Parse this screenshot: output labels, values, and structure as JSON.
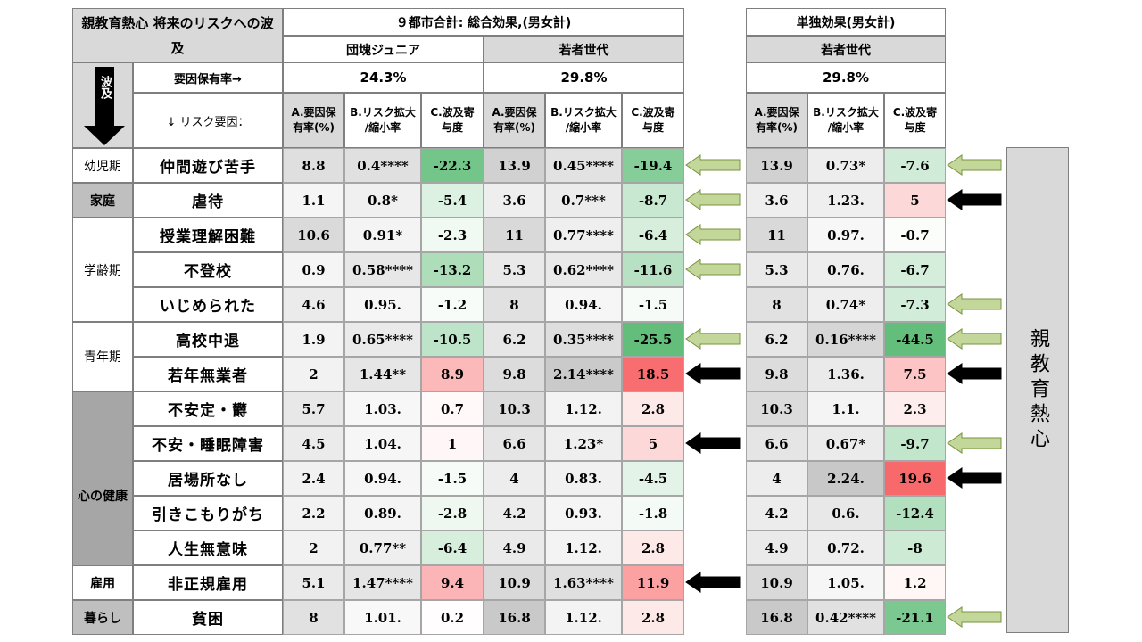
{
  "title": "親教育熱心 将来のリスクへの波及",
  "groups": {
    "total": "９都市合計: 総合効果,(男女計)",
    "single": "単独効果(男女計)"
  },
  "cohorts": {
    "dankai": "団塊ジュニア",
    "young": "若者世代",
    "young_single": "若者世代"
  },
  "rates": {
    "label": "要因保有率→",
    "dankai": "24.3%",
    "young": "29.8%",
    "young_single": "29.8%"
  },
  "risk_factor_label": "↓ リスク要因：",
  "hakyu_label": "波及",
  "col_headers": [
    "A.要因保有率(%)",
    "B.リスク拡大/縮小率",
    "C.波及寄与度"
  ],
  "side_label": "親教育熱心",
  "stages": [
    {
      "label": "幼児期"
    },
    {
      "label": "家庭"
    },
    {
      "label": "学齢期"
    },
    {
      "label": "青年期"
    },
    {
      "label": "心の健康"
    },
    {
      "label": "雇用"
    },
    {
      "label": "暮らし"
    }
  ],
  "rows": [
    {
      "risk": "仲間遊び苦手",
      "v": [
        "8.8",
        "0.4****",
        "-22.3",
        "13.9",
        "0.45****",
        "-19.4",
        "13.9",
        "0.73*",
        "-7.6"
      ]
    },
    {
      "risk": "虐待",
      "v": [
        "1.1",
        "0.8*",
        "-5.4",
        "3.6",
        "0.7***",
        "-8.7",
        "3.6",
        "1.23.",
        "5"
      ]
    },
    {
      "risk": "授業理解困難",
      "v": [
        "10.6",
        "0.91*",
        "-2.3",
        "11",
        "0.77****",
        "-6.4",
        "11",
        "0.97.",
        "-0.7"
      ]
    },
    {
      "risk": "不登校",
      "v": [
        "0.9",
        "0.58****",
        "-13.2",
        "5.3",
        "0.62****",
        "-11.6",
        "5.3",
        "0.76.",
        "-6.7"
      ]
    },
    {
      "risk": "いじめられた",
      "v": [
        "4.6",
        "0.95.",
        "-1.2",
        "8",
        "0.94.",
        "-1.5",
        "8",
        "0.74*",
        "-7.3"
      ]
    },
    {
      "risk": "高校中退",
      "v": [
        "1.9",
        "0.65****",
        "-10.5",
        "6.2",
        "0.35****",
        "-25.5",
        "6.2",
        "0.16****",
        "-44.5"
      ]
    },
    {
      "risk": "若年無業者",
      "v": [
        "2",
        "1.44**",
        "8.9",
        "9.8",
        "2.14****",
        "18.5",
        "9.8",
        "1.36.",
        "7.5"
      ]
    },
    {
      "risk": "不安定・欝",
      "v": [
        "5.7",
        "1.03.",
        "0.7",
        "10.3",
        "1.12.",
        "2.8",
        "10.3",
        "1.1.",
        "2.3"
      ]
    },
    {
      "risk": "不安・睡眠障害",
      "v": [
        "4.5",
        "1.04.",
        "1",
        "6.6",
        "1.23*",
        "5",
        "6.6",
        "0.67*",
        "-9.7"
      ]
    },
    {
      "risk": "居場所なし",
      "v": [
        "2.4",
        "0.94.",
        "-1.5",
        "4",
        "0.83.",
        "-4.5",
        "4",
        "2.24.",
        "19.6"
      ]
    },
    {
      "risk": "引きこもりがち",
      "v": [
        "2.2",
        "0.89.",
        "-2.8",
        "4.2",
        "0.93.",
        "-1.8",
        "4.2",
        "0.6.",
        "-12.4"
      ]
    },
    {
      "risk": "人生無意味",
      "v": [
        "2",
        "0.77**",
        "-6.4",
        "4.9",
        "1.12.",
        "2.8",
        "4.9",
        "0.72.",
        "-8"
      ]
    },
    {
      "risk": "非正規雇用",
      "v": [
        "5.1",
        "1.47****",
        "9.4",
        "10.9",
        "1.63****",
        "11.9",
        "10.9",
        "1.05.",
        "1.2"
      ]
    },
    {
      "risk": "貧困",
      "v": [
        "8",
        "1.01.",
        "0.2",
        "16.8",
        "1.12.",
        "2.8",
        "16.8",
        "0.42****",
        "-21.1"
      ]
    }
  ],
  "colors": {
    "header_gray": "#d9d9d9",
    "stage_gray": "#bfbfbf",
    "arrow_green": "#9bbb59",
    "arrow_black": "#000000"
  }
}
